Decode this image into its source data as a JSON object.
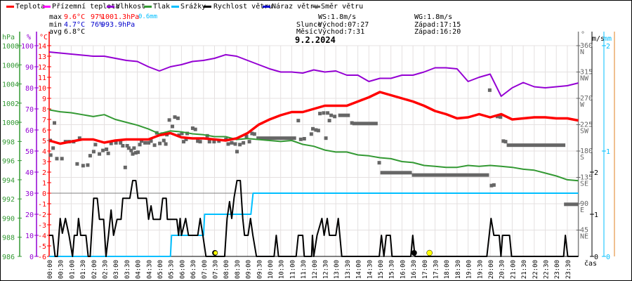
{
  "legend": [
    {
      "label": "Teplota",
      "color": "#ff0000"
    },
    {
      "label": "Přízemní teplota",
      "color": "#ff00ff"
    },
    {
      "label": "Vlhkost",
      "color": "#9400d3"
    },
    {
      "label": "Tlak",
      "color": "#339933"
    },
    {
      "label": "Srážky",
      "color": "#00bfff"
    },
    {
      "label": "Rychlost větru",
      "color": "#000000"
    },
    {
      "label": "Náraz větru",
      "color": "#0000cc"
    },
    {
      "label": "Směr větru",
      "color": "#666666"
    }
  ],
  "stats": {
    "max_label": "max",
    "min_label": "min",
    "avg_label": "avg",
    "max_temp": "9.6°C",
    "max_hum": "97%",
    "max_press": "1001.3hPa",
    "max_rain": "0.6mm",
    "min_temp": "4.7°C",
    "min_hum": "76%",
    "min_press": "993.9hPa",
    "avg_temp": "6.8°C"
  },
  "info": {
    "ws": "WS:1.8m/s",
    "wg": "WG:1.8m/s",
    "sun_label": "Slunce",
    "sunrise": "Východ:07:27",
    "sunset": "Západ:17:15",
    "moon_label": "Měsíc",
    "moonrise": "Východ:7:31",
    "moonset": "Západ:16:20"
  },
  "chart_data": {
    "type": "line",
    "title": "9.2.2024",
    "xlabel": "čas",
    "x_range_hours": [
      0,
      24
    ],
    "x_tick_labels": [
      "00:00",
      "00:30",
      "01:00",
      "01:30",
      "02:00",
      "02:30",
      "03:00",
      "03:30",
      "04:00",
      "04:30",
      "05:00",
      "05:30",
      "06:00",
      "06:30",
      "07:00",
      "07:30",
      "08:00",
      "08:30",
      "09:00",
      "09:30",
      "10:00",
      "10:30",
      "11:00",
      "11:30",
      "12:00",
      "12:30",
      "13:00",
      "13:30",
      "14:00",
      "14:30",
      "15:00",
      "15:30",
      "16:00",
      "16:30",
      "17:00",
      "17:30",
      "18:00",
      "18:30",
      "19:00",
      "19:30",
      "20:00",
      "20:30",
      "21:00",
      "21:30",
      "22:00",
      "22:30",
      "23:00",
      "23:30"
    ],
    "axes": {
      "pressure": {
        "unit": "hPa",
        "range": [
          986,
          1008
        ],
        "ticks": [
          "1008",
          "1006",
          "1004",
          "1002",
          "1000",
          "998",
          "996",
          "994",
          "992",
          "990",
          "988",
          "986"
        ]
      },
      "humidity": {
        "unit": "%",
        "range": [
          0,
          100
        ],
        "ticks": [
          "100",
          "90",
          "80",
          "70",
          "60",
          "50",
          "40",
          "30",
          "20",
          "10",
          "0"
        ]
      },
      "temperature": {
        "unit": "°C",
        "range": [
          -6,
          14
        ],
        "ticks": [
          "14",
          "13",
          "12",
          "11",
          "10",
          "9",
          "8",
          "7",
          "6",
          "5",
          "4",
          "3",
          "2",
          "1",
          "0",
          "-1",
          "-2",
          "-3",
          "-4",
          "-5",
          "-6"
        ]
      },
      "direction": {
        "unit": "°",
        "range": [
          0,
          360
        ],
        "ticks": [
          "360",
          "315",
          "270",
          "225",
          "180",
          "135",
          "90",
          "45"
        ],
        "compass": [
          "N",
          "NW",
          "W",
          "SW",
          "S",
          "SE",
          "E",
          "NE"
        ]
      },
      "wind": {
        "unit": "m/s",
        "range": [
          0,
          2.5
        ],
        "ticks": [
          "2",
          "1",
          "0"
        ]
      },
      "rain": {
        "unit": "mm",
        "range": [
          0,
          2
        ],
        "ticks": [
          "2",
          "1",
          "0"
        ]
      }
    },
    "x_step_hours": 0.5,
    "series": {
      "temperature": [
        5.0,
        4.7,
        4.9,
        5.1,
        5.1,
        4.8,
        5.0,
        5.1,
        5.1,
        5.1,
        5.5,
        5.7,
        5.3,
        5.2,
        5.2,
        5.1,
        5.0,
        5.2,
        5.7,
        6.5,
        7.0,
        7.4,
        7.7,
        7.7,
        8.0,
        8.3,
        8.3,
        8.3,
        8.7,
        9.1,
        9.6,
        9.3,
        9.0,
        8.7,
        8.3,
        7.8,
        7.5,
        7.1,
        7.2,
        7.5,
        7.2,
        7.5,
        7.0,
        7.1,
        7.2,
        7.2,
        7.1,
        7.1,
        6.9
      ],
      "humidity": [
        97,
        96.5,
        96,
        95.5,
        95,
        95,
        94,
        93,
        92.5,
        90,
        88,
        90,
        91,
        92.5,
        93,
        94,
        95.7,
        95,
        93,
        91,
        89,
        87.5,
        87.5,
        87,
        88.5,
        87.5,
        88,
        86,
        86,
        83,
        84.5,
        84.5,
        86,
        86,
        87.5,
        89.5,
        89.5,
        89,
        83,
        85,
        86.5,
        76,
        80,
        82.5,
        80.5,
        80,
        80.5,
        81,
        82.3
      ],
      "pressure": [
        1001.3,
        1001.1,
        1001.0,
        1000.8,
        1000.6,
        1000.8,
        1000.3,
        1000.0,
        999.7,
        999.3,
        998.8,
        999.1,
        999.0,
        998.8,
        998.7,
        998.5,
        998.5,
        998.2,
        998.3,
        998.2,
        998.1,
        998.0,
        998.1,
        997.7,
        997.5,
        997.1,
        996.9,
        996.9,
        996.6,
        996.5,
        996.3,
        996.2,
        995.9,
        995.8,
        995.5,
        995.4,
        995.3,
        995.3,
        995.5,
        995.4,
        995.5,
        995.4,
        995.3,
        995.1,
        995.0,
        994.7,
        994.4,
        994.0,
        993.9
      ]
    },
    "rain_cumulative": [
      [
        0,
        0
      ],
      [
        5.5,
        0
      ],
      [
        5.55,
        0.2
      ],
      [
        7.0,
        0.2
      ],
      [
        7.05,
        0.4
      ],
      [
        9.15,
        0.4
      ],
      [
        9.25,
        0.6
      ],
      [
        24,
        0.6
      ]
    ],
    "wind_speed": [
      [
        0,
        0.5
      ],
      [
        0.16,
        0.5
      ],
      [
        0.27,
        0
      ],
      [
        0.37,
        0
      ],
      [
        0.5,
        0.9
      ],
      [
        0.6,
        0.55
      ],
      [
        0.74,
        0.9
      ],
      [
        0.9,
        0.5
      ],
      [
        1.06,
        0
      ],
      [
        1.14,
        0.5
      ],
      [
        1.27,
        0.5
      ],
      [
        1.33,
        0.9
      ],
      [
        1.43,
        0.5
      ],
      [
        1.67,
        0.5
      ],
      [
        1.77,
        0
      ],
      [
        1.86,
        0
      ],
      [
        2.02,
        1.38
      ],
      [
        2.18,
        1.38
      ],
      [
        2.28,
        0.88
      ],
      [
        2.47,
        0.88
      ],
      [
        2.58,
        0
      ],
      [
        2.69,
        0.5
      ],
      [
        2.81,
        1.1
      ],
      [
        2.92,
        0.5
      ],
      [
        3.08,
        0.88
      ],
      [
        3.26,
        0.88
      ],
      [
        3.34,
        1.38
      ],
      [
        3.66,
        1.38
      ],
      [
        3.79,
        1.8
      ],
      [
        3.93,
        1.8
      ],
      [
        4.03,
        1.38
      ],
      [
        4.41,
        1.38
      ],
      [
        4.51,
        0.88
      ],
      [
        4.62,
        1.2
      ],
      [
        4.72,
        0.88
      ],
      [
        5.04,
        0.88
      ],
      [
        5.15,
        1.38
      ],
      [
        5.31,
        1.38
      ],
      [
        5.36,
        0.88
      ],
      [
        5.79,
        0.88
      ],
      [
        5.87,
        0.5
      ],
      [
        5.94,
        0.9
      ],
      [
        6.0,
        0.5
      ],
      [
        6.19,
        0.9
      ],
      [
        6.32,
        0.5
      ],
      [
        6.74,
        0.5
      ],
      [
        6.85,
        0.9
      ],
      [
        6.97,
        0.5
      ],
      [
        7.11,
        0
      ],
      [
        7.96,
        0
      ],
      [
        8.07,
        0.9
      ],
      [
        8.18,
        1.3
      ],
      [
        8.28,
        0.9
      ],
      [
        8.39,
        1.4
      ],
      [
        8.52,
        1.8
      ],
      [
        8.67,
        1.8
      ],
      [
        8.78,
        0.9
      ],
      [
        8.86,
        0.5
      ],
      [
        9.02,
        0.5
      ],
      [
        9.13,
        0.9
      ],
      [
        9.24,
        0.5
      ],
      [
        9.4,
        0
      ],
      [
        10.2,
        0
      ],
      [
        10.3,
        0.5
      ],
      [
        10.4,
        0
      ],
      [
        11.2,
        0
      ],
      [
        11.3,
        0.5
      ],
      [
        11.5,
        0.5
      ],
      [
        11.57,
        0
      ],
      [
        11.9,
        0
      ],
      [
        11.94,
        0.5
      ],
      [
        12.0,
        0
      ],
      [
        12.15,
        0.5
      ],
      [
        12.37,
        0.9
      ],
      [
        12.47,
        0.5
      ],
      [
        12.61,
        0.9
      ],
      [
        12.71,
        0.5
      ],
      [
        13.0,
        0.5
      ],
      [
        13.11,
        0.9
      ],
      [
        13.27,
        0
      ],
      [
        14.97,
        0
      ],
      [
        15.07,
        0.5
      ],
      [
        15.18,
        0
      ],
      [
        15.29,
        0.5
      ],
      [
        15.47,
        0.5
      ],
      [
        15.55,
        0
      ],
      [
        16.4,
        0
      ],
      [
        16.49,
        0.5
      ],
      [
        16.59,
        0
      ],
      [
        19.85,
        0
      ],
      [
        20.04,
        0.9
      ],
      [
        20.17,
        0.5
      ],
      [
        20.41,
        0.5
      ],
      [
        20.49,
        0
      ],
      [
        20.56,
        0.5
      ],
      [
        20.88,
        0.5
      ],
      [
        20.97,
        0
      ],
      [
        23.33,
        0
      ],
      [
        23.41,
        0.5
      ],
      [
        23.52,
        0
      ],
      [
        24,
        0
      ]
    ],
    "wind_direction_points": [
      [
        0.05,
        198
      ],
      [
        0.07,
        173
      ],
      [
        0.24,
        228
      ],
      [
        0.18,
        185
      ],
      [
        0.35,
        167
      ],
      [
        0.58,
        167
      ],
      [
        0.74,
        196
      ],
      [
        0.9,
        196
      ],
      [
        1.11,
        196
      ],
      [
        1.27,
        158
      ],
      [
        1.38,
        202
      ],
      [
        1.54,
        155
      ],
      [
        1.75,
        156
      ],
      [
        1.86,
        172
      ],
      [
        2.02,
        179
      ],
      [
        2.1,
        191
      ],
      [
        2.28,
        175
      ],
      [
        2.44,
        181
      ],
      [
        2.6,
        183
      ],
      [
        2.68,
        176
      ],
      [
        2.81,
        193
      ],
      [
        3.03,
        194
      ],
      [
        3.24,
        194
      ],
      [
        3.34,
        189
      ],
      [
        3.45,
        152
      ],
      [
        3.54,
        189
      ],
      [
        3.61,
        185
      ],
      [
        3.72,
        181
      ],
      [
        3.79,
        175
      ],
      [
        3.85,
        185
      ],
      [
        3.93,
        177
      ],
      [
        4.03,
        178
      ],
      [
        4.11,
        191
      ],
      [
        4.19,
        197
      ],
      [
        4.35,
        194
      ],
      [
        4.51,
        194
      ],
      [
        4.62,
        197
      ],
      [
        4.78,
        190
      ],
      [
        4.88,
        211
      ],
      [
        5.02,
        193
      ],
      [
        5.13,
        209
      ],
      [
        5.2,
        198
      ],
      [
        5.29,
        192
      ],
      [
        5.34,
        208
      ],
      [
        5.45,
        233
      ],
      [
        5.59,
        222
      ],
      [
        5.7,
        238
      ],
      [
        5.84,
        236
      ],
      [
        5.89,
        207
      ],
      [
        6.02,
        210
      ],
      [
        6.1,
        196
      ],
      [
        6.21,
        200
      ],
      [
        6.26,
        210
      ],
      [
        6.51,
        219
      ],
      [
        6.63,
        217
      ],
      [
        6.74,
        197
      ],
      [
        6.85,
        196
      ],
      [
        7.17,
        206
      ],
      [
        7.27,
        196
      ],
      [
        7.48,
        196
      ],
      [
        7.7,
        197
      ],
      [
        8.02,
        200
      ],
      [
        8.12,
        192
      ],
      [
        8.28,
        194
      ],
      [
        8.44,
        192
      ],
      [
        8.52,
        179
      ],
      [
        8.65,
        191
      ],
      [
        8.81,
        194
      ],
      [
        8.95,
        205
      ],
      [
        9.08,
        196
      ],
      [
        9.2,
        210
      ],
      [
        9.31,
        209
      ],
      [
        11.3,
        232
      ],
      [
        11.41,
        200
      ],
      [
        11.57,
        201
      ],
      [
        11.89,
        209
      ],
      [
        11.96,
        218
      ],
      [
        12.1,
        216
      ],
      [
        12.21,
        215
      ],
      [
        12.28,
        244
      ],
      [
        12.45,
        245
      ],
      [
        12.55,
        202
      ],
      [
        12.63,
        245
      ],
      [
        12.71,
        232
      ],
      [
        12.79,
        241
      ],
      [
        12.95,
        239
      ],
      [
        13.73,
        228
      ],
      [
        14.97,
        160
      ],
      [
        19.98,
        284
      ],
      [
        20.06,
        121
      ],
      [
        20.17,
        122
      ],
      [
        20.33,
        239
      ],
      [
        20.47,
        238
      ],
      [
        20.6,
        197
      ],
      [
        20.7,
        196
      ]
    ],
    "wind_direction_bands": [
      [
        9.4,
        11.2,
        202
      ],
      [
        13.11,
        13.64,
        241
      ],
      [
        13.75,
        14.9,
        227
      ],
      [
        15.02,
        16.45,
        143
      ],
      [
        16.45,
        19.95,
        139
      ],
      [
        20.75,
        23.41,
        190
      ],
      [
        23.35,
        24,
        89
      ]
    ],
    "sun_moon": {
      "sunrise": 7.45,
      "sunset": 17.25,
      "moonrise": 7.52,
      "moonset": 16.33
    }
  }
}
